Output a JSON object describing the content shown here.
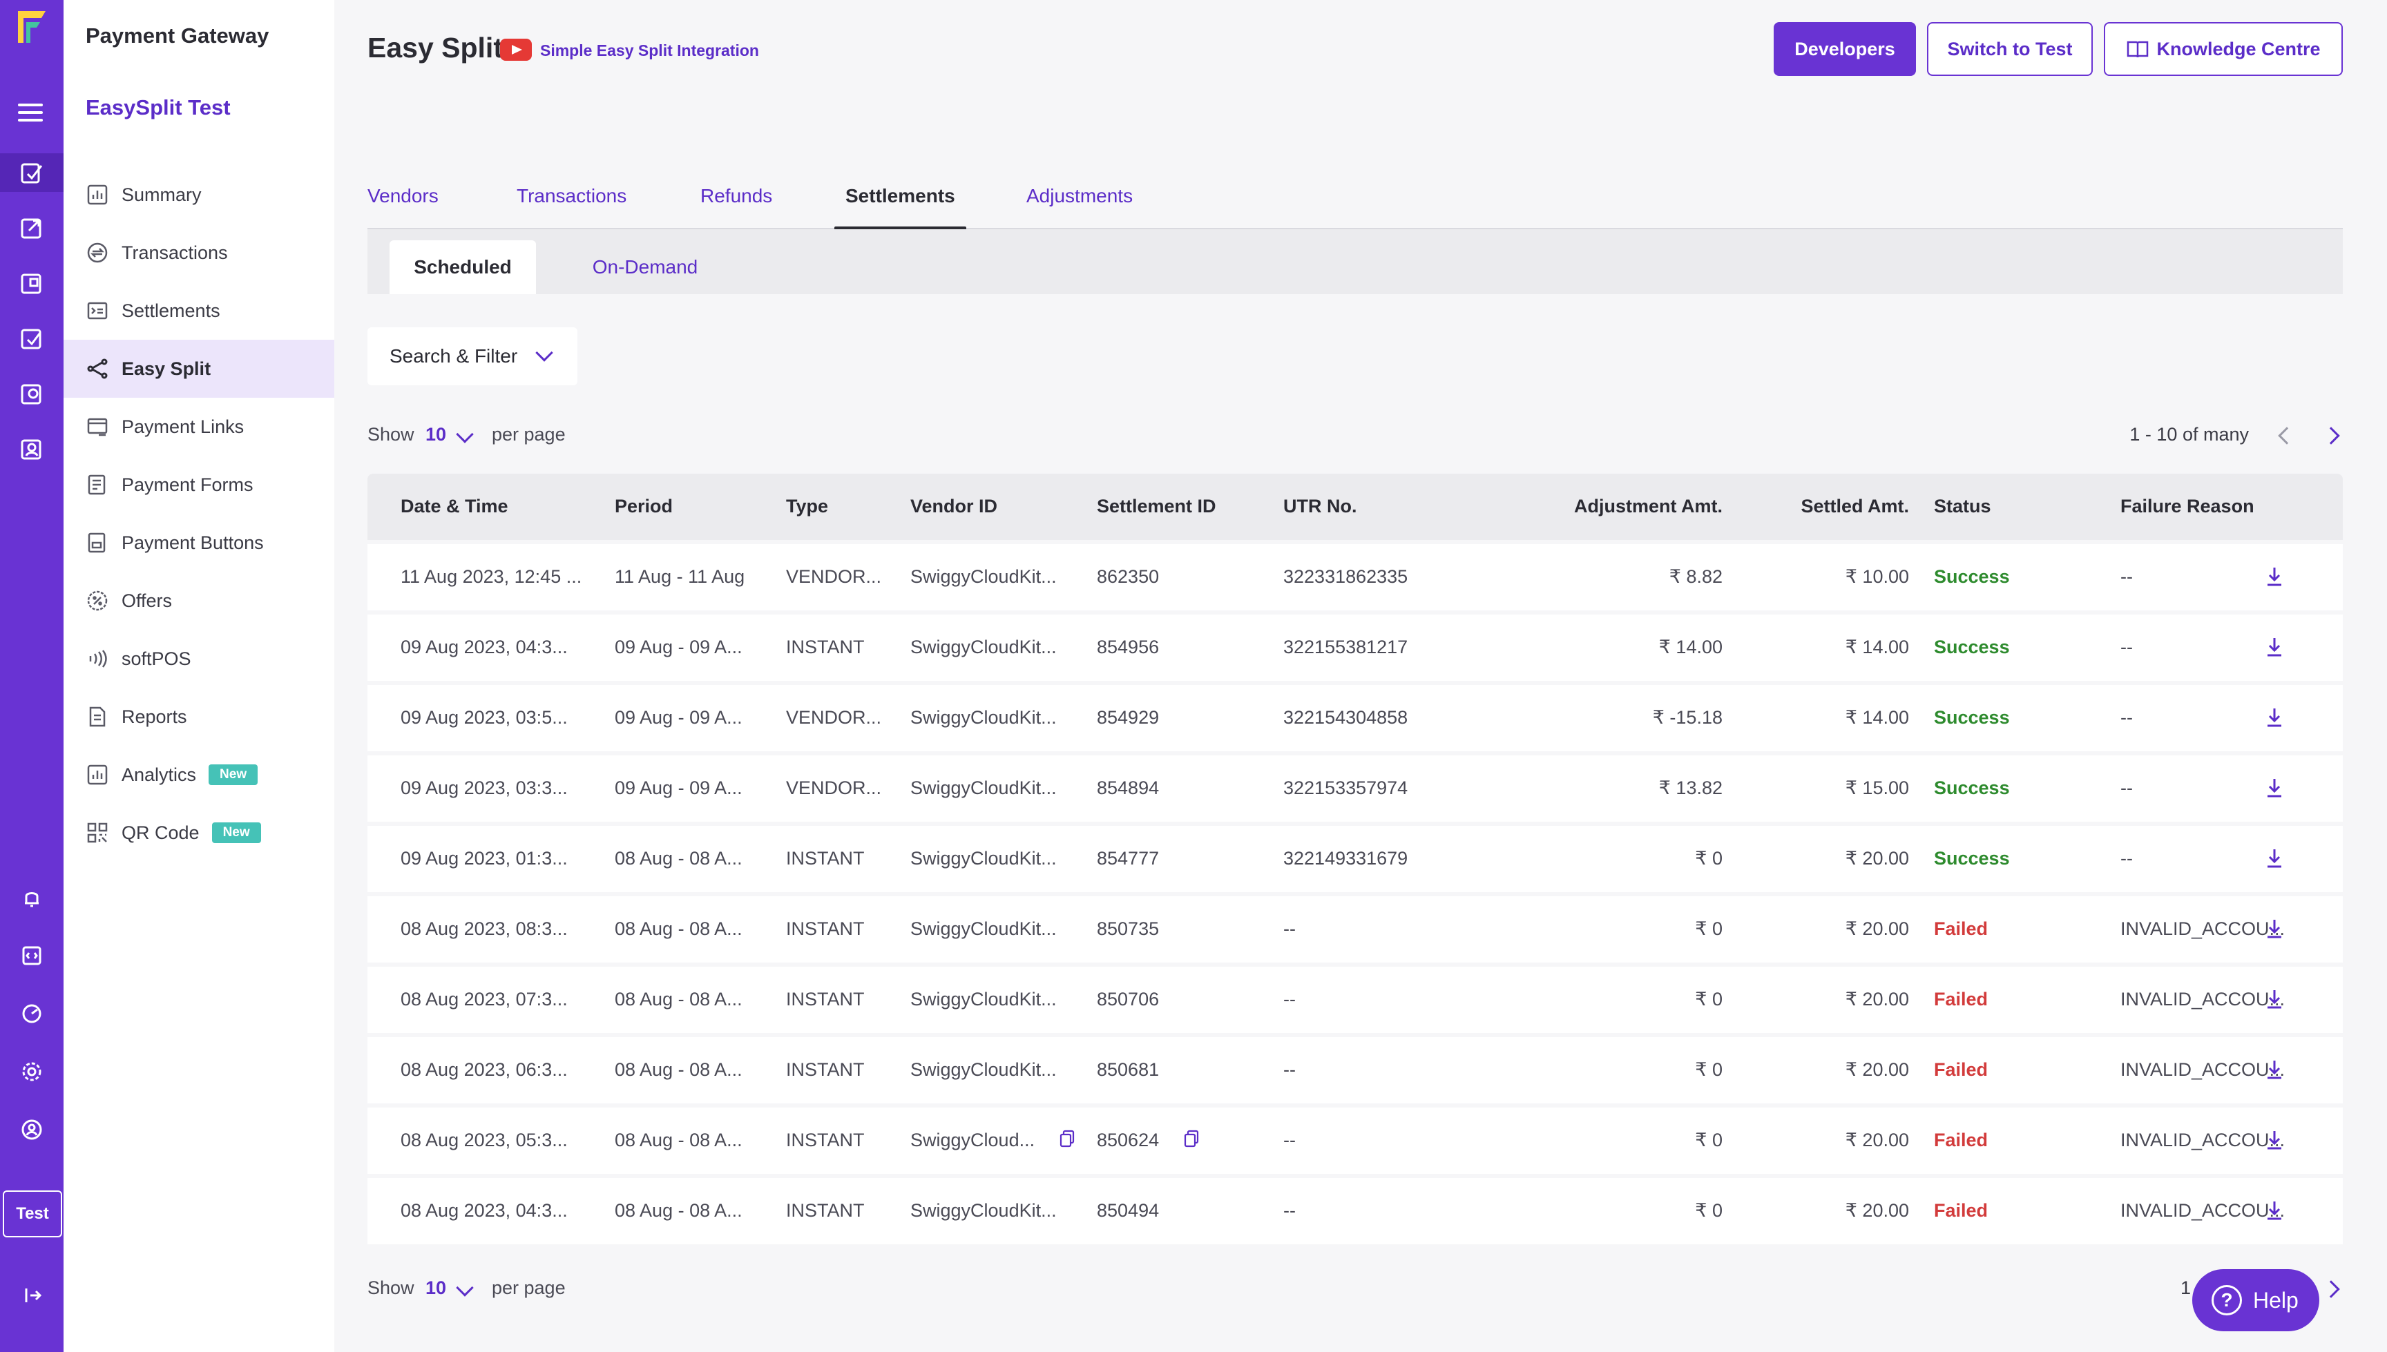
{
  "brand": {
    "accent": "#6933d3",
    "success": "#2e8b2e",
    "failed": "#d23b3b"
  },
  "rail": {
    "test_label": "Test",
    "icons": [
      "menu-icon",
      "easy-split-icon",
      "payment-links-icon",
      "settlements-icon",
      "offers-icon",
      "forms-icon",
      "reports-icon",
      "bell-icon",
      "developer-icon",
      "analytics-icon",
      "gear-icon",
      "account-icon",
      "logout-icon"
    ]
  },
  "sidebar": {
    "title": "Payment Gateway",
    "subtitle": "EasySplit Test",
    "items": [
      {
        "label": "Summary",
        "icon": "chart-icon"
      },
      {
        "label": "Transactions",
        "icon": "transactions-icon"
      },
      {
        "label": "Settlements",
        "icon": "settlements-icon"
      },
      {
        "label": "Easy Split",
        "icon": "share-icon",
        "active": true
      },
      {
        "label": "Payment Links",
        "icon": "link-icon"
      },
      {
        "label": "Payment Forms",
        "icon": "form-icon"
      },
      {
        "label": "Payment Buttons",
        "icon": "button-icon"
      },
      {
        "label": "Offers",
        "icon": "offer-icon"
      },
      {
        "label": "softPOS",
        "icon": "nfc-icon"
      },
      {
        "label": "Reports",
        "icon": "report-icon"
      },
      {
        "label": "Analytics",
        "icon": "analytics-icon",
        "badge": "New"
      },
      {
        "label": "QR Code",
        "icon": "qr-icon",
        "badge": "New"
      }
    ]
  },
  "header": {
    "title": "Easy Split",
    "video_link": "Simple Easy Split Integration",
    "buttons": {
      "developers": "Developers",
      "switch": "Switch to Test",
      "knowledge": "Knowledge Centre"
    }
  },
  "tabs": [
    "Vendors",
    "Transactions",
    "Refunds",
    "Settlements",
    "Adjustments"
  ],
  "active_tab": "Settlements",
  "subtabs": {
    "scheduled": "Scheduled",
    "on_demand": "On-Demand"
  },
  "filter": {
    "label": "Search & Filter"
  },
  "pager": {
    "show": "Show",
    "per_page_value": "10",
    "per_page": "per page",
    "range": "1 - 10 of many"
  },
  "table": {
    "columns": [
      "Date & Time",
      "Period",
      "Type",
      "Vendor ID",
      "Settlement ID",
      "UTR No.",
      "Adjustment Amt.",
      "Settled Amt.",
      "Status",
      "Failure Reason"
    ],
    "rows": [
      {
        "date": "11 Aug 2023, 12:45 ...",
        "period": "11 Aug - 11 Aug",
        "type": "VENDOR...",
        "vendor": "SwiggyCloudKit...",
        "settlement": "862350",
        "utr": "322331862335",
        "adj": "₹ 8.82",
        "settled": "₹ 10.00",
        "status": "Success",
        "reason": "--"
      },
      {
        "date": "09 Aug 2023, 04:3...",
        "period": "09 Aug - 09 A...",
        "type": "INSTANT",
        "vendor": "SwiggyCloudKit...",
        "settlement": "854956",
        "utr": "322155381217",
        "adj": "₹ 14.00",
        "settled": "₹ 14.00",
        "status": "Success",
        "reason": "--"
      },
      {
        "date": "09 Aug 2023, 03:5...",
        "period": "09 Aug - 09 A...",
        "type": "VENDOR...",
        "vendor": "SwiggyCloudKit...",
        "settlement": "854929",
        "utr": "322154304858",
        "adj": "₹ -15.18",
        "settled": "₹ 14.00",
        "status": "Success",
        "reason": "--"
      },
      {
        "date": "09 Aug 2023, 03:3...",
        "period": "09 Aug - 09 A...",
        "type": "VENDOR...",
        "vendor": "SwiggyCloudKit...",
        "settlement": "854894",
        "utr": "322153357974",
        "adj": "₹ 13.82",
        "settled": "₹ 15.00",
        "status": "Success",
        "reason": "--"
      },
      {
        "date": "09 Aug 2023, 01:3...",
        "period": "08 Aug - 08 A...",
        "type": "INSTANT",
        "vendor": "SwiggyCloudKit...",
        "settlement": "854777",
        "utr": "322149331679",
        "adj": "₹ 0",
        "settled": "₹ 20.00",
        "status": "Success",
        "reason": "--"
      },
      {
        "date": "08 Aug 2023, 08:3...",
        "period": "08 Aug - 08 A...",
        "type": "INSTANT",
        "vendor": "SwiggyCloudKit...",
        "settlement": "850735",
        "utr": "--",
        "adj": "₹ 0",
        "settled": "₹ 20.00",
        "status": "Failed",
        "reason": "INVALID_ACCOU..."
      },
      {
        "date": "08 Aug 2023, 07:3...",
        "period": "08 Aug - 08 A...",
        "type": "INSTANT",
        "vendor": "SwiggyCloudKit...",
        "settlement": "850706",
        "utr": "--",
        "adj": "₹ 0",
        "settled": "₹ 20.00",
        "status": "Failed",
        "reason": "INVALID_ACCOU..."
      },
      {
        "date": "08 Aug 2023, 06:3...",
        "period": "08 Aug - 08 A...",
        "type": "INSTANT",
        "vendor": "SwiggyCloudKit...",
        "settlement": "850681",
        "utr": "--",
        "adj": "₹ 0",
        "settled": "₹ 20.00",
        "status": "Failed",
        "reason": "INVALID_ACCOU..."
      },
      {
        "date": "08 Aug 2023, 05:3...",
        "period": "08 Aug - 08 A...",
        "type": "INSTANT",
        "vendor": "SwiggyCloud...",
        "settlement": "850624",
        "utr": "--",
        "adj": "₹ 0",
        "settled": "₹ 20.00",
        "status": "Failed",
        "reason": "INVALID_ACCOU...",
        "copy": true
      },
      {
        "date": "08 Aug 2023, 04:3...",
        "period": "08 Aug - 08 A...",
        "type": "INSTANT",
        "vendor": "SwiggyCloudKit...",
        "settlement": "850494",
        "utr": "--",
        "adj": "₹ 0",
        "settled": "₹ 20.00",
        "status": "Failed",
        "reason": "INVALID_ACCOU..."
      }
    ]
  },
  "pager_bottom": {
    "range": "1 - 10 of"
  },
  "help": {
    "label": "Help"
  }
}
